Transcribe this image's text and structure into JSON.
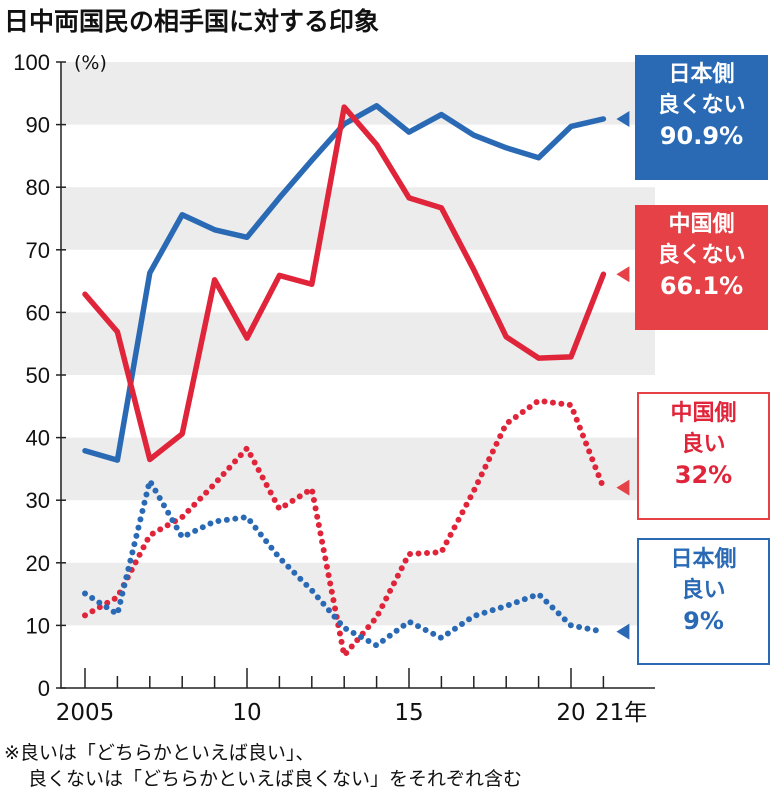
{
  "title": "日中両国民の相手国に対する印象",
  "footnote": [
    "※良いは「どちらかといえば良い」、",
    "良くないは「どちらかといえば良くない」をそれぞれ含む"
  ],
  "chart_data": {
    "type": "line",
    "title": "日中両国民の相手国に対する印象",
    "ylabel": "(%)",
    "ylim": [
      0,
      100
    ],
    "yticks": [
      "0",
      "10",
      "20",
      "30",
      "40",
      "50",
      "60",
      "70",
      "80",
      "90",
      "100"
    ],
    "xticklabels": [
      "2005",
      "10",
      "15",
      "20",
      "21年"
    ],
    "x": [
      2005,
      2006,
      2007,
      2008,
      2009,
      2010,
      2011,
      2012,
      2013,
      2014,
      2015,
      2016,
      2017,
      2018,
      2019,
      2020,
      2021
    ],
    "grid": "alternating horizontal bands",
    "series": [
      {
        "name": "日本側 良くない",
        "end_label": "90.9%",
        "color": "#2a6ab5",
        "style": "solid",
        "values": [
          37.9,
          36.4,
          66.3,
          75.6,
          73.2,
          72.0,
          78.3,
          84.3,
          90.1,
          93.0,
          88.8,
          91.6,
          88.3,
          86.3,
          84.7,
          89.7,
          90.9
        ]
      },
      {
        "name": "中国側 良くない",
        "end_label": "66.1%",
        "color": "#e0243a",
        "style": "solid",
        "values": [
          62.9,
          56.9,
          36.5,
          40.6,
          65.2,
          55.9,
          65.9,
          64.5,
          92.8,
          86.8,
          78.3,
          76.7,
          66.8,
          56.1,
          52.7,
          52.9,
          66.1
        ]
      },
      {
        "name": "中国側 良い",
        "end_label": "32%",
        "color": "#e0243a",
        "style": "dotted",
        "values": [
          11.6,
          14.5,
          24.4,
          27.3,
          32.6,
          38.3,
          28.6,
          31.8,
          5.2,
          11.3,
          21.4,
          21.7,
          31.5,
          42.2,
          45.9,
          45.2,
          32.0
        ]
      },
      {
        "name": "日本側 良い",
        "end_label": "9%",
        "color": "#2a6ab5",
        "style": "dotted",
        "values": [
          15.1,
          11.8,
          33.1,
          24.1,
          26.6,
          27.3,
          20.8,
          15.6,
          9.6,
          6.8,
          10.6,
          8.0,
          11.5,
          13.1,
          15.0,
          10.0,
          9.0
        ]
      }
    ],
    "labels": [
      {
        "line1": "日本側",
        "line2": "良くない",
        "value": "90.9%"
      },
      {
        "line1": "中国側",
        "line2": "良くない",
        "value": "66.1%"
      },
      {
        "line1": "中国側",
        "line2": "良い",
        "value": "32%"
      },
      {
        "line1": "日本側",
        "line2": "良い",
        "value": "9%"
      }
    ]
  }
}
